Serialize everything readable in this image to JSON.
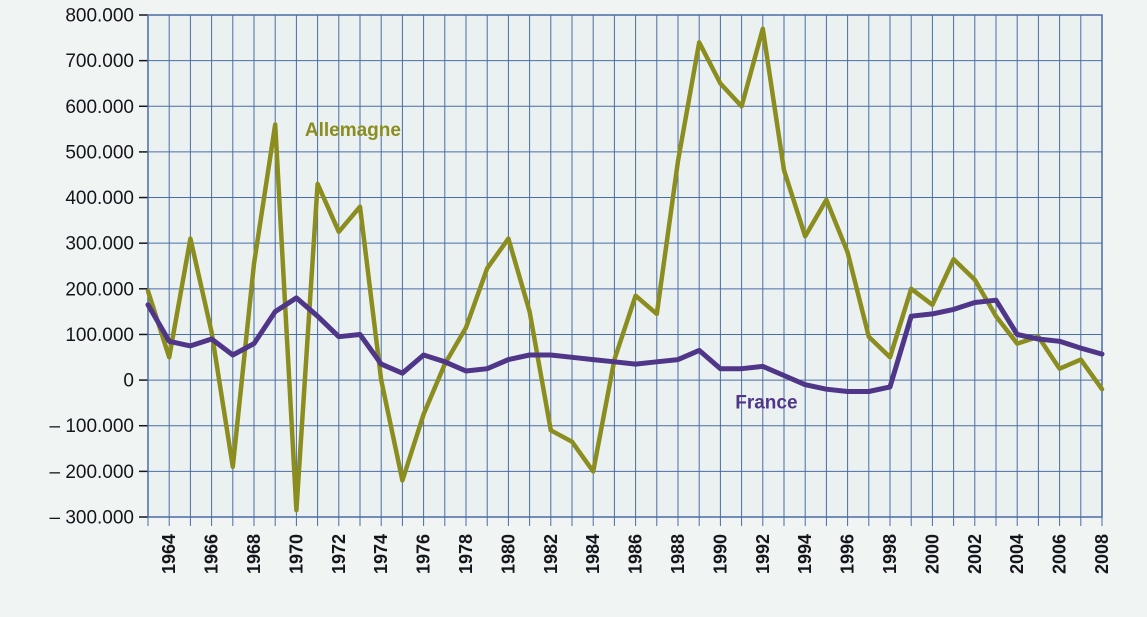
{
  "page": {
    "background_color": "#f0f4f3"
  },
  "chart_data": {
    "type": "line",
    "title": "",
    "xlabel": "",
    "ylabel": "",
    "x": [
      1963,
      1964,
      1965,
      1966,
      1967,
      1968,
      1969,
      1970,
      1971,
      1972,
      1973,
      1974,
      1975,
      1976,
      1977,
      1978,
      1979,
      1980,
      1981,
      1982,
      1983,
      1984,
      1985,
      1986,
      1987,
      1988,
      1989,
      1990,
      1991,
      1992,
      1993,
      1994,
      1995,
      1996,
      1997,
      1998,
      1999,
      2000,
      2001,
      2002,
      2003,
      2004,
      2005,
      2006,
      2007,
      2008
    ],
    "series": [
      {
        "name": "Allemagne",
        "color": "#8b8d1f",
        "stroke_width": 4.5,
        "label_anchor": {
          "x": 1970.4,
          "y": 535000
        },
        "values": [
          195000,
          50000,
          310000,
          105000,
          -190000,
          255000,
          560000,
          -285000,
          430000,
          325000,
          380000,
          0,
          -220000,
          -75000,
          35000,
          115000,
          245000,
          310000,
          150000,
          -110000,
          -135000,
          -200000,
          45000,
          185000,
          145000,
          480000,
          740000,
          650000,
          600000,
          770000,
          460000,
          315000,
          395000,
          280000,
          95000,
          50000,
          200000,
          165000,
          265000,
          220000,
          140000,
          80000,
          95000,
          25000,
          45000,
          -20000
        ]
      },
      {
        "name": "France",
        "color": "#4f3688",
        "stroke_width": 5,
        "label_anchor": {
          "x": 1990.7,
          "y": -62000
        },
        "values": [
          165000,
          85000,
          75000,
          90000,
          55000,
          80000,
          150000,
          180000,
          140000,
          95000,
          100000,
          35000,
          15000,
          55000,
          40000,
          20000,
          25000,
          45000,
          55000,
          55000,
          50000,
          45000,
          40000,
          35000,
          40000,
          45000,
          65000,
          25000,
          25000,
          30000,
          10000,
          -10000,
          -20000,
          -25000,
          -25000,
          -15000,
          140000,
          145000,
          155000,
          170000,
          175000,
          100000,
          90000,
          85000,
          70000,
          57000
        ]
      }
    ],
    "ylim": [
      -300000,
      800000
    ],
    "y_tick_step": 100000,
    "y_tick_labels": [
      "800.000",
      "700.000",
      "600.000",
      "500.000",
      "400.000",
      "300.000",
      "200.000",
      "100.000",
      "0",
      "– 100.000",
      "– 200.000",
      "– 300.000"
    ],
    "x_tick_years": [
      1964,
      1966,
      1968,
      1970,
      1972,
      1974,
      1976,
      1978,
      1980,
      1982,
      1984,
      1986,
      1988,
      1990,
      1992,
      1994,
      1996,
      1998,
      2000,
      2002,
      2004,
      2006,
      2008
    ],
    "x_tick_labels": [
      "1964",
      "1966",
      "1968",
      "1970",
      "1972",
      "1974",
      "1976",
      "1978",
      "1980",
      "1982",
      "1984",
      "1986",
      "1988",
      "1990",
      "1992",
      "1994",
      "1996",
      "1998",
      "2000",
      "2002",
      "2004",
      "2006",
      "2008"
    ],
    "grid": true,
    "grid_color": "#4a6da6",
    "plot_background": "#ebf1f0",
    "axis_text_color": "#15151c",
    "legend_position": "inline series labels on chart"
  }
}
